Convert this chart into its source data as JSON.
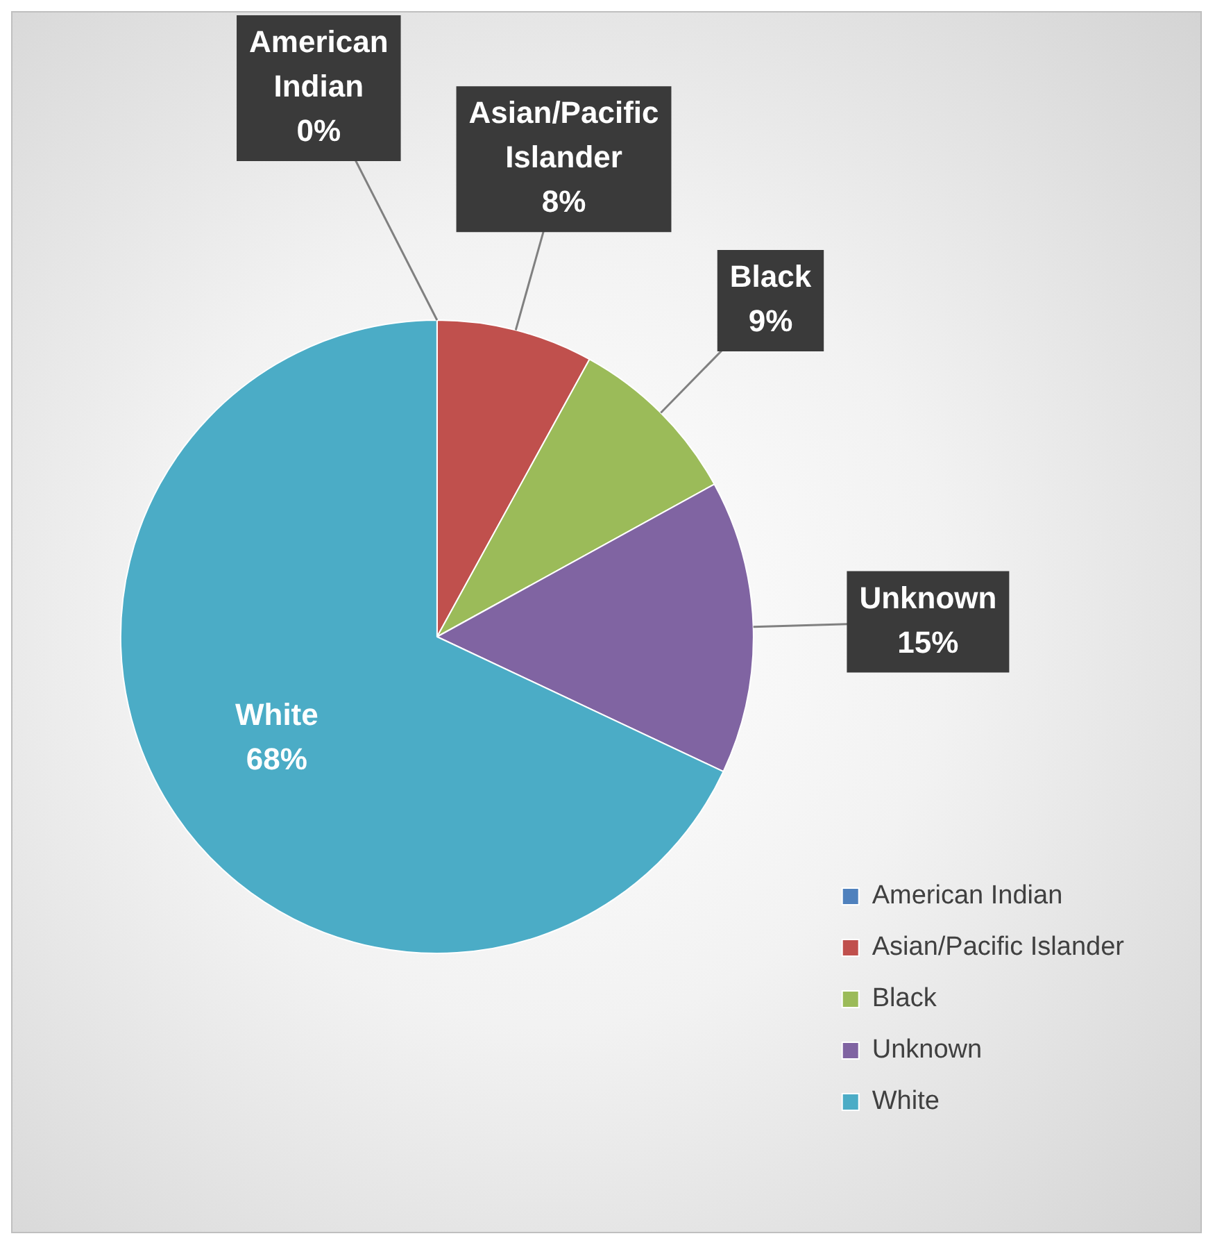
{
  "chart_data": {
    "type": "pie",
    "categories": [
      "American Indian",
      "Asian/Pacific Islander",
      "Black",
      "Unknown",
      "White"
    ],
    "values": [
      0,
      8,
      9,
      15,
      68
    ],
    "colors": [
      "#4f81bd",
      "#c0504d",
      "#9bbb59",
      "#8064a2",
      "#4bacc6"
    ],
    "value_labels": [
      "0%",
      "8%",
      "9%",
      "15%",
      "68%"
    ],
    "legend": "bottom right"
  }
}
